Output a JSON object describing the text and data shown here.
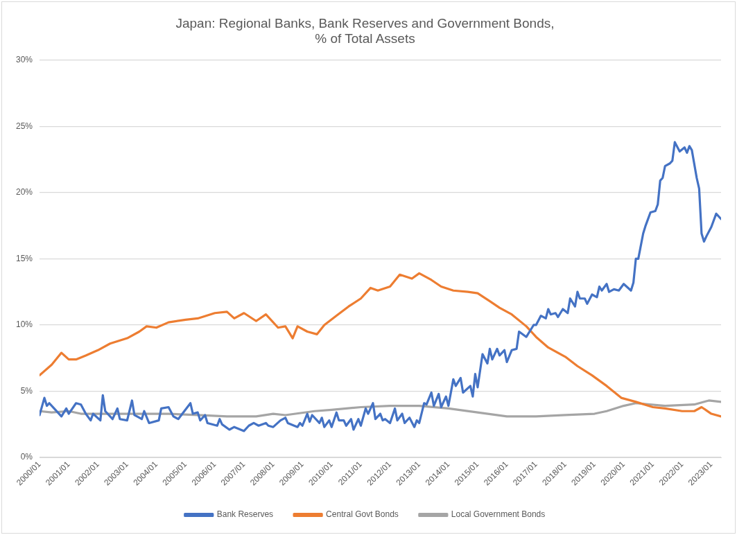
{
  "chart_data": {
    "type": "line",
    "title": "Japan: Regional Banks, Bank Reserves and Government Bonds,\n% of Total Assets",
    "xlim": [
      "2000-01",
      "2023-05"
    ],
    "xticks": [
      {
        "value": "2000-01",
        "label": "2000/01"
      },
      {
        "value": "2001-01",
        "label": "2001/01"
      },
      {
        "value": "2002-01",
        "label": "2002/01"
      },
      {
        "value": "2003-01",
        "label": "2003/01"
      },
      {
        "value": "2004-01",
        "label": "2004/01"
      },
      {
        "value": "2005-01",
        "label": "2005/01"
      },
      {
        "value": "2006-01",
        "label": "2006/01"
      },
      {
        "value": "2007-01",
        "label": "2007/01"
      },
      {
        "value": "2008-01",
        "label": "2008/01"
      },
      {
        "value": "2009-01",
        "label": "2009/01"
      },
      {
        "value": "2010-01",
        "label": "2010/01"
      },
      {
        "value": "2011-01",
        "label": "2011/01"
      },
      {
        "value": "2012-01",
        "label": "2012/01"
      },
      {
        "value": "2013-01",
        "label": "2013/01"
      },
      {
        "value": "2014-01",
        "label": "2014/01"
      },
      {
        "value": "2015-01",
        "label": "2015/01"
      },
      {
        "value": "2016-01",
        "label": "2016/01"
      },
      {
        "value": "2017-01",
        "label": "2017/01"
      },
      {
        "value": "2018-01",
        "label": "2018/01"
      },
      {
        "value": "2019-01",
        "label": "2019/01"
      },
      {
        "value": "2020-01",
        "label": "2020/01"
      },
      {
        "value": "2021-01",
        "label": "2021/01"
      },
      {
        "value": "2022-01",
        "label": "2022/01"
      },
      {
        "value": "2023-01",
        "label": "2023/01"
      }
    ],
    "ylim": [
      0,
      30
    ],
    "yticks": [
      {
        "value": 0,
        "label": "0%"
      },
      {
        "value": 5,
        "label": "5%"
      },
      {
        "value": 10,
        "label": "10%"
      },
      {
        "value": 15,
        "label": "15%"
      },
      {
        "value": 20,
        "label": "20%"
      },
      {
        "value": 25,
        "label": "25%"
      },
      {
        "value": 30,
        "label": "30%"
      }
    ],
    "grid": "y",
    "legend": "bottom",
    "marker": "none",
    "line_style": "solid",
    "series": [
      {
        "name": "Bank Reserves",
        "color": "#4472c4",
        "x": [
          "2000-01",
          "2000-03",
          "2000-04",
          "2000-05",
          "2000-07",
          "2000-10",
          "2000-12",
          "2001-01",
          "2001-04",
          "2001-06",
          "2001-08",
          "2001-10",
          "2001-11",
          "2002-02",
          "2002-03",
          "2002-04",
          "2002-07",
          "2002-09",
          "2002-10",
          "2003-01",
          "2003-03",
          "2003-04",
          "2003-07",
          "2003-08",
          "2003-10",
          "2004-02",
          "2004-03",
          "2004-06",
          "2004-08",
          "2004-10",
          "2005-03",
          "2005-04",
          "2005-06",
          "2005-07",
          "2005-09",
          "2005-10",
          "2006-02",
          "2006-03",
          "2006-04",
          "2006-07",
          "2006-09",
          "2007-01",
          "2007-03",
          "2007-05",
          "2007-07",
          "2007-10",
          "2007-11",
          "2008-01",
          "2008-04",
          "2008-06",
          "2008-07",
          "2008-11",
          "2008-12",
          "2009-01",
          "2009-03",
          "2009-04",
          "2009-05",
          "2009-08",
          "2009-09",
          "2009-10",
          "2009-12",
          "2010-01",
          "2010-03",
          "2010-04",
          "2010-06",
          "2010-07",
          "2010-09",
          "2010-10",
          "2010-12",
          "2011-01",
          "2011-03",
          "2011-04",
          "2011-06",
          "2011-07",
          "2011-09",
          "2011-10",
          "2011-11",
          "2012-01",
          "2012-03",
          "2012-04",
          "2012-06",
          "2012-07",
          "2012-09",
          "2012-11",
          "2012-12",
          "2013-01",
          "2013-03",
          "2013-04",
          "2013-06",
          "2013-07",
          "2013-09",
          "2013-10",
          "2013-12",
          "2014-01",
          "2014-03",
          "2014-04",
          "2014-06",
          "2014-07",
          "2014-10",
          "2014-11",
          "2014-12",
          "2015-01",
          "2015-03",
          "2015-05",
          "2015-06",
          "2015-07",
          "2015-09",
          "2015-10",
          "2015-12",
          "2016-01",
          "2016-03",
          "2016-05",
          "2016-06",
          "2016-09",
          "2016-12",
          "2017-01",
          "2017-03",
          "2017-05",
          "2017-06",
          "2017-07",
          "2017-09",
          "2017-10",
          "2017-12",
          "2018-02",
          "2018-03",
          "2018-05",
          "2018-06",
          "2018-07",
          "2018-09",
          "2018-10",
          "2018-12",
          "2019-02",
          "2019-03",
          "2019-04",
          "2019-06",
          "2019-07",
          "2019-09",
          "2019-11",
          "2020-01",
          "2020-04",
          "2020-05",
          "2020-06",
          "2020-07",
          "2020-09",
          "2020-10",
          "2020-12",
          "2021-02",
          "2021-03",
          "2021-04",
          "2021-05",
          "2021-06",
          "2021-08",
          "2021-09",
          "2021-10",
          "2021-12",
          "2022-02",
          "2022-03",
          "2022-04",
          "2022-05",
          "2022-07",
          "2022-08",
          "2022-09",
          "2022-10",
          "2022-11",
          "2023-01",
          "2023-03",
          "2023-05"
        ],
        "values": [
          3.2,
          4.5,
          3.9,
          4.1,
          3.7,
          3.1,
          3.7,
          3.3,
          4.1,
          4.0,
          3.3,
          2.8,
          3.3,
          2.8,
          4.7,
          3.5,
          2.9,
          3.7,
          2.9,
          2.8,
          4.3,
          3.2,
          2.9,
          3.5,
          2.6,
          2.8,
          3.7,
          3.8,
          3.1,
          2.9,
          4.1,
          3.3,
          3.4,
          2.8,
          3.2,
          2.6,
          2.4,
          2.9,
          2.5,
          2.1,
          2.3,
          2.0,
          2.4,
          2.6,
          2.4,
          2.6,
          2.4,
          2.3,
          2.8,
          3.0,
          2.6,
          2.3,
          2.6,
          2.4,
          3.3,
          2.7,
          3.2,
          2.6,
          3.0,
          2.3,
          2.8,
          2.3,
          3.4,
          2.8,
          2.8,
          2.4,
          2.9,
          2.1,
          2.9,
          2.4,
          3.7,
          3.3,
          4.1,
          2.9,
          3.3,
          2.8,
          2.9,
          2.6,
          3.7,
          2.8,
          3.3,
          2.6,
          3.0,
          2.3,
          2.8,
          2.6,
          4.1,
          4.0,
          4.9,
          3.9,
          4.8,
          3.8,
          4.6,
          3.9,
          5.9,
          5.4,
          6.0,
          4.9,
          5.4,
          4.6,
          6.3,
          5.3,
          7.8,
          7.1,
          8.2,
          7.4,
          8.2,
          7.7,
          8.1,
          7.2,
          8.1,
          8.2,
          9.5,
          9.1,
          10.0,
          10.0,
          10.7,
          10.5,
          11.2,
          10.8,
          10.9,
          10.6,
          11.2,
          10.9,
          12.0,
          11.4,
          12.5,
          12.0,
          12.0,
          11.6,
          12.3,
          12.1,
          12.9,
          12.6,
          13.1,
          12.5,
          12.7,
          12.6,
          13.1,
          12.6,
          13.2,
          15.0,
          15.0,
          16.9,
          17.5,
          18.5,
          18.6,
          19.1,
          20.9,
          21.1,
          22.0,
          22.2,
          22.4,
          23.8,
          23.1,
          23.4,
          23.0,
          23.5,
          23.2,
          21.1,
          20.3,
          16.9,
          16.3,
          16.7,
          17.4,
          18.4,
          18.0
        ]
      },
      {
        "name": "Central Govt Bonds",
        "color": "#ed7d31",
        "x": [
          "2000-01",
          "2000-06",
          "2000-10",
          "2001-01",
          "2001-04",
          "2001-08",
          "2002-01",
          "2002-06",
          "2003-01",
          "2003-06",
          "2003-09",
          "2004-01",
          "2004-06",
          "2005-01",
          "2005-06",
          "2006-01",
          "2006-06",
          "2006-09",
          "2007-01",
          "2007-06",
          "2007-10",
          "2008-03",
          "2008-06",
          "2008-09",
          "2008-11",
          "2009-03",
          "2009-07",
          "2009-10",
          "2010-03",
          "2010-08",
          "2011-01",
          "2011-05",
          "2011-08",
          "2012-01",
          "2012-05",
          "2012-10",
          "2013-01",
          "2013-06",
          "2013-10",
          "2014-03",
          "2014-09",
          "2015-01",
          "2015-06",
          "2015-10",
          "2016-03",
          "2016-09",
          "2017-01",
          "2017-06",
          "2018-01",
          "2018-06",
          "2018-12",
          "2019-06",
          "2019-12",
          "2020-06",
          "2021-01",
          "2021-06",
          "2022-01",
          "2022-06",
          "2022-09",
          "2023-01",
          "2023-05"
        ],
        "values": [
          6.2,
          7.0,
          7.9,
          7.4,
          7.4,
          7.7,
          8.1,
          8.6,
          9.0,
          9.5,
          9.9,
          9.8,
          10.2,
          10.4,
          10.5,
          10.9,
          11.0,
          10.5,
          10.9,
          10.3,
          10.8,
          9.8,
          9.9,
          9.0,
          9.9,
          9.5,
          9.3,
          10.0,
          10.7,
          11.4,
          12.0,
          12.8,
          12.6,
          12.9,
          13.8,
          13.5,
          13.9,
          13.4,
          12.9,
          12.6,
          12.5,
          12.4,
          11.8,
          11.3,
          10.8,
          9.9,
          9.1,
          8.3,
          7.6,
          6.9,
          6.2,
          5.4,
          4.5,
          4.2,
          3.8,
          3.7,
          3.5,
          3.5,
          3.8,
          3.3,
          3.1
        ]
      },
      {
        "name": "Local Government Bonds",
        "color": "#a5a5a5",
        "x": [
          "2000-01",
          "2000-06",
          "2001-01",
          "2001-06",
          "2003-01",
          "2004-06",
          "2005-06",
          "2006-06",
          "2007-06",
          "2008-01",
          "2008-06",
          "2009-06",
          "2010-01",
          "2011-01",
          "2012-01",
          "2013-01",
          "2014-01",
          "2015-01",
          "2016-01",
          "2017-01",
          "2018-01",
          "2019-01",
          "2019-06",
          "2020-01",
          "2020-06",
          "2021-06",
          "2022-06",
          "2022-12",
          "2023-05"
        ],
        "values": [
          3.5,
          3.4,
          3.5,
          3.3,
          3.3,
          3.3,
          3.2,
          3.1,
          3.1,
          3.3,
          3.2,
          3.5,
          3.6,
          3.8,
          3.9,
          3.9,
          3.7,
          3.4,
          3.1,
          3.1,
          3.2,
          3.3,
          3.5,
          3.9,
          4.1,
          3.9,
          4.0,
          4.3,
          4.2
        ]
      }
    ]
  }
}
